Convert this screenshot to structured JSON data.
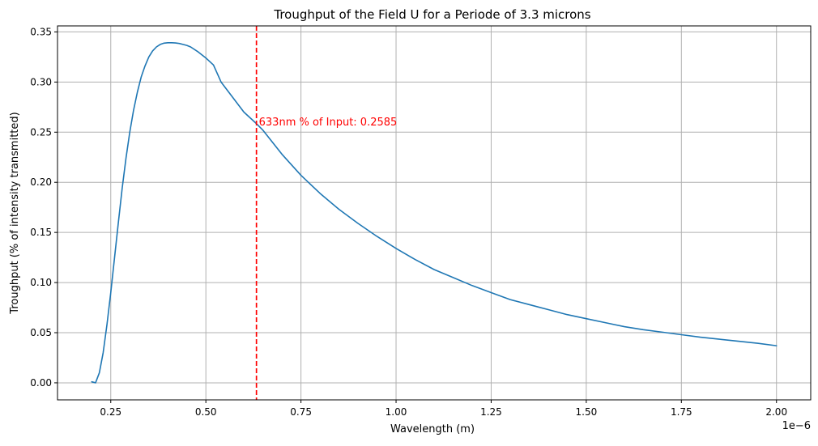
{
  "chart_data": {
    "type": "line",
    "title": "Troughput of the Field U for a Periode of 3.3 microns",
    "xlabel": "Wavelength (m)",
    "ylabel": "Troughput (% of intensity transmitted)",
    "x_offset_label": "1e−6",
    "xlim": [
      1.1e-07,
      2.09e-06
    ],
    "ylim": [
      -0.017,
      0.356
    ],
    "x_ticks": [
      2.5e-07,
      5e-07,
      7.5e-07,
      1e-06,
      1.25e-06,
      1.5e-06,
      1.75e-06,
      2e-06
    ],
    "x_tick_labels": [
      "0.25",
      "0.50",
      "0.75",
      "1.00",
      "1.25",
      "1.50",
      "1.75",
      "2.00"
    ],
    "y_ticks": [
      0.0,
      0.05,
      0.1,
      0.15,
      0.2,
      0.25,
      0.3,
      0.35
    ],
    "y_tick_labels": [
      "0.00",
      "0.05",
      "0.10",
      "0.15",
      "0.20",
      "0.25",
      "0.30",
      "0.35"
    ],
    "grid": true,
    "series": [
      {
        "color": "#1f77b4",
        "x": [
          2e-07,
          2.1e-07,
          2.2e-07,
          2.3e-07,
          2.4e-07,
          2.5e-07,
          2.6e-07,
          2.7e-07,
          2.8e-07,
          2.9e-07,
          3e-07,
          3.1e-07,
          3.2e-07,
          3.3e-07,
          3.4e-07,
          3.5e-07,
          3.6e-07,
          3.7e-07,
          3.8e-07,
          3.9e-07,
          4e-07,
          4.1e-07,
          4.2e-07,
          4.3e-07,
          4.4e-07,
          4.5e-07,
          4.6e-07,
          4.8e-07,
          5e-07,
          5.2e-07,
          5.4e-07,
          5.6e-07,
          5.8e-07,
          6e-07,
          6.33e-07,
          6.5e-07,
          7e-07,
          7.5e-07,
          8e-07,
          8.5e-07,
          9e-07,
          9.5e-07,
          1e-06,
          1.05e-06,
          1.1e-06,
          1.15e-06,
          1.2e-06,
          1.25e-06,
          1.3e-06,
          1.35e-06,
          1.4e-06,
          1.45e-06,
          1.5e-06,
          1.55e-06,
          1.6e-06,
          1.65e-06,
          1.7e-06,
          1.75e-06,
          1.8e-06,
          1.85e-06,
          1.9e-06,
          1.95e-06,
          2e-06
        ],
        "values": [
          0.001,
          0.0,
          0.01,
          0.03,
          0.058,
          0.09,
          0.125,
          0.16,
          0.194,
          0.224,
          0.25,
          0.272,
          0.29,
          0.305,
          0.316,
          0.325,
          0.331,
          0.335,
          0.3375,
          0.3388,
          0.3392,
          0.3392,
          0.339,
          0.3385,
          0.3375,
          0.3365,
          0.335,
          0.33,
          0.324,
          0.317,
          0.3,
          0.29,
          0.28,
          0.27,
          0.2585,
          0.252,
          0.228,
          0.207,
          0.189,
          0.173,
          0.159,
          0.146,
          0.134,
          0.123,
          0.113,
          0.105,
          0.097,
          0.09,
          0.083,
          0.078,
          0.073,
          0.068,
          0.064,
          0.06,
          0.056,
          0.053,
          0.0505,
          0.048,
          0.0455,
          0.0435,
          0.0415,
          0.0395,
          0.037
        ]
      }
    ],
    "vline": {
      "x": 6.33e-07,
      "color": "#ff0000",
      "style": "dashed"
    },
    "annotation": {
      "text": "633nm % of Input: 0.2585",
      "x": 6.33e-07,
      "y": 0.2585,
      "color": "#ff0000"
    },
    "colors": {
      "grid": "#b0b0b0",
      "axes": "#000000",
      "line": "#1f77b4",
      "marker": "#ff0000"
    }
  }
}
